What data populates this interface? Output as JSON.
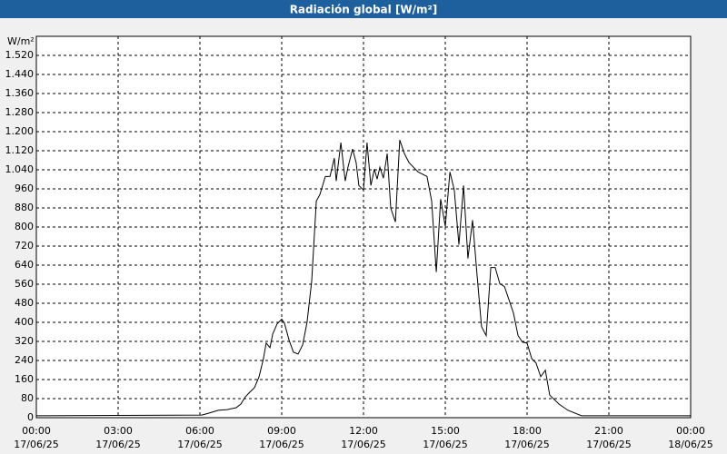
{
  "chart_data": {
    "type": "line",
    "title": "Radiación global [W/m²]",
    "y_label": "W/m²",
    "xlim": [
      0,
      24
    ],
    "xticks": [
      {
        "value": 0,
        "label": "00:00"
      },
      {
        "value": 3,
        "label": "03:00"
      },
      {
        "value": 6,
        "label": "06:00"
      },
      {
        "value": 9,
        "label": "09:00"
      },
      {
        "value": 12,
        "label": "12:00"
      },
      {
        "value": 15,
        "label": "15:00"
      },
      {
        "value": 18,
        "label": "18:00"
      },
      {
        "value": 21,
        "label": "21:00"
      },
      {
        "value": 24,
        "label": "00:00"
      }
    ],
    "xtick_dates": [
      "17/06/25",
      "17/06/25",
      "17/06/25",
      "17/06/25",
      "17/06/25",
      "17/06/25",
      "17/06/25",
      "17/06/25",
      "18/06/25"
    ],
    "ylim": [
      0,
      1600
    ],
    "yticks": [
      0,
      80,
      160,
      240,
      320,
      400,
      480,
      560,
      640,
      720,
      800,
      880,
      960,
      {
        "value": 1040,
        "label": "1.040"
      },
      {
        "value": 1120,
        "label": "1.120"
      },
      {
        "value": 1200,
        "label": "1.200"
      },
      {
        "value": 1280,
        "label": "1.280"
      },
      {
        "value": 1360,
        "label": "1.360"
      },
      {
        "value": 1440,
        "label": "1.440"
      },
      {
        "value": 1520,
        "label": "1.520"
      }
    ],
    "grid": true,
    "color": "#000000",
    "x": [
      0,
      6.07,
      6.33,
      6.67,
      7,
      7.33,
      7.5,
      7.67,
      7.83,
      8,
      8.17,
      8.33,
      8.43,
      8.57,
      8.67,
      8.83,
      9,
      9.1,
      9.27,
      9.43,
      9.6,
      9.77,
      9.93,
      10.1,
      10.27,
      10.4,
      10.6,
      10.77,
      10.93,
      11,
      11.17,
      11.33,
      11.43,
      11.6,
      11.73,
      11.83,
      12,
      12.13,
      12.27,
      12.4,
      12.5,
      12.6,
      12.73,
      12.87,
      13,
      13.17,
      13.33,
      13.5,
      13.67,
      14,
      14.33,
      14.5,
      14.67,
      14.83,
      15,
      15.17,
      15.33,
      15.5,
      15.67,
      15.83,
      16,
      16.17,
      16.33,
      16.5,
      16.67,
      16.83,
      17,
      17.17,
      17.33,
      17.5,
      17.67,
      17.83,
      18,
      18.17,
      18.33,
      18.5,
      18.67,
      18.83,
      19.17,
      19.5,
      20,
      24
    ],
    "values": [
      8,
      11,
      19,
      31,
      34,
      42,
      57,
      88,
      107,
      126,
      172,
      248,
      313,
      294,
      351,
      393,
      413,
      397,
      325,
      275,
      267,
      306,
      401,
      573,
      909,
      936,
      1012,
      1012,
      1089,
      993,
      1154,
      993,
      1051,
      1127,
      1070,
      974,
      955,
      1154,
      974,
      1043,
      1001,
      1051,
      1005,
      1108,
      879,
      821,
      1165,
      1108,
      1070,
      1031,
      1012,
      909,
      611,
      917,
      802,
      1031,
      955,
      726,
      974,
      668,
      829,
      592,
      382,
      344,
      630,
      630,
      562,
      550,
      497,
      439,
      344,
      317,
      313,
      248,
      229,
      172,
      199,
      95,
      57,
      31,
      8,
      8
    ]
  }
}
